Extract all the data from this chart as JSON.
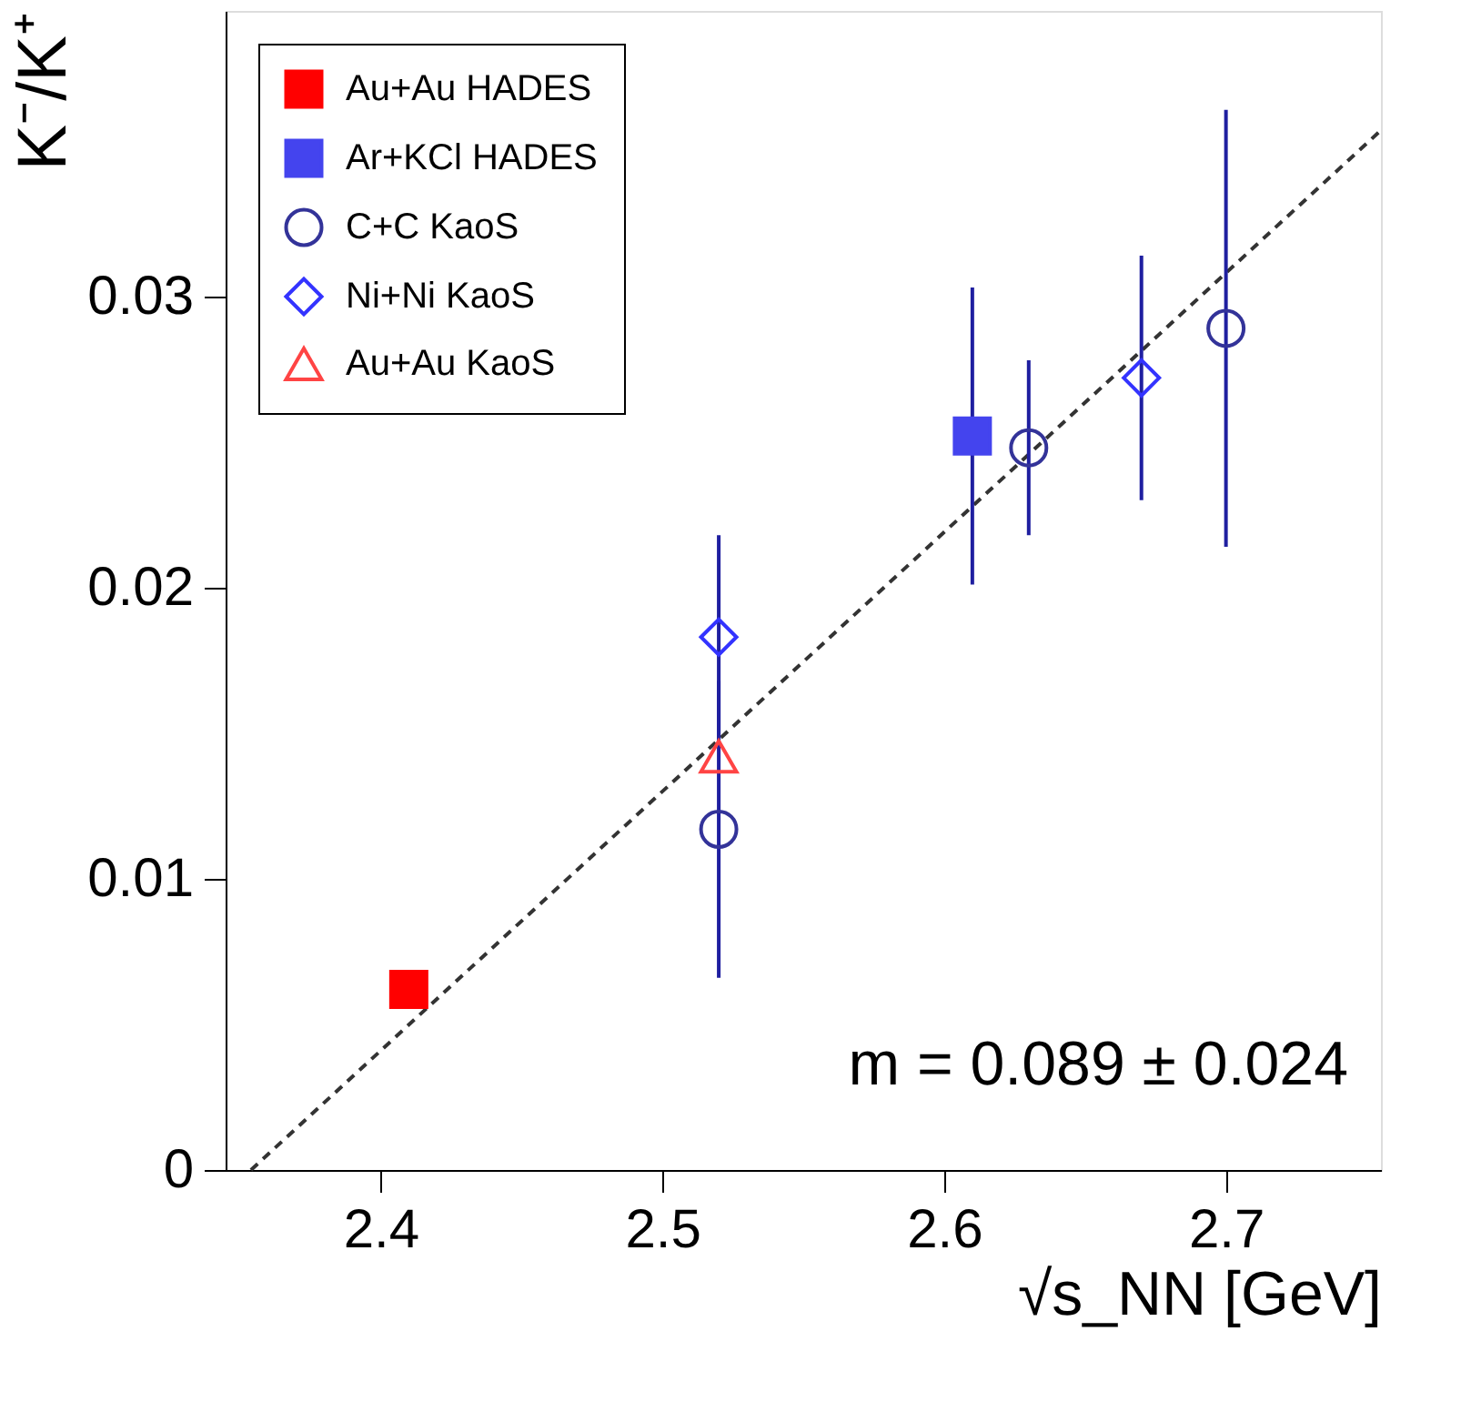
{
  "chart_data": {
    "type": "scatter",
    "xlabel": "√s_NN [GeV]",
    "ylabel": "K⁻/K⁺",
    "xlim": [
      2.345,
      2.755
    ],
    "ylim": [
      0,
      0.0398
    ],
    "xticks": [
      2.4,
      2.5,
      2.6,
      2.7
    ],
    "yticks": [
      0,
      0.01,
      0.02,
      0.03
    ],
    "grid": false,
    "legend": "top left",
    "series": [
      {
        "name": "Au+Au HADES",
        "marker": "square",
        "color": "#ff0000",
        "x": [
          2.41
        ],
        "values": [
          0.0062
        ],
        "errors": [
          null
        ]
      },
      {
        "name": "Ar+KCl HADES",
        "marker": "square",
        "color": "#4444ee",
        "x": [
          2.61
        ],
        "values": [
          0.0252
        ],
        "errors": [
          0.0051
        ]
      },
      {
        "name": "C+C KaoS",
        "marker": "circle",
        "color": "#333399",
        "x": [
          2.52,
          2.63,
          2.7
        ],
        "values": [
          0.0117,
          0.0248,
          0.0289
        ],
        "errors": [
          0.0051,
          0.003,
          0.0075
        ]
      },
      {
        "name": "Ni+Ni KaoS",
        "marker": "diamond",
        "color": "#3333ff",
        "x": [
          2.52,
          2.67
        ],
        "values": [
          0.0183,
          0.0272
        ],
        "errors": [
          0.0035,
          0.0042
        ]
      },
      {
        "name": "Au+Au KaoS",
        "marker": "triangle",
        "color": "#ff4444",
        "x": [
          2.52
        ],
        "values": [
          0.0142
        ],
        "errors": [
          null
        ]
      },
      {
        "type": "line",
        "line_style": "dashed",
        "color": "#333333",
        "x": [
          2.354,
          2.755
        ],
        "values": [
          0,
          0.0357
        ]
      }
    ],
    "annotations": [
      "m = 0.089 ± 0.024"
    ]
  }
}
